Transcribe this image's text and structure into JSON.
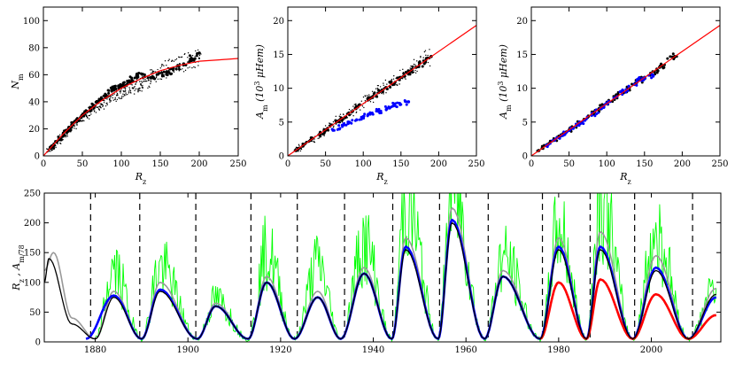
{
  "chart_data": [
    {
      "type": "scatter",
      "panel": "top-left",
      "xlabel": "R_z",
      "ylabel": "N_m",
      "xlim": [
        0,
        250
      ],
      "ylim": [
        0,
        110
      ],
      "xticks": [
        "0",
        "50",
        "100",
        "150",
        "200",
        "250"
      ],
      "yticks": [
        "0",
        "20",
        "40",
        "60",
        "80",
        "100"
      ],
      "grid": false,
      "series": [
        {
          "color": "#000000",
          "style": "small dots",
          "points": [
            [
              5,
              3
            ],
            [
              15,
              8
            ],
            [
              25,
              15
            ],
            [
              35,
              20
            ],
            [
              45,
              26
            ],
            [
              55,
              30
            ],
            [
              65,
              35
            ],
            [
              75,
              38
            ],
            [
              85,
              42
            ],
            [
              95,
              45
            ],
            [
              105,
              48
            ],
            [
              115,
              50
            ],
            [
              125,
              53
            ],
            [
              135,
              56
            ],
            [
              145,
              60
            ],
            [
              160,
              65
            ],
            [
              175,
              68
            ],
            [
              190,
              70
            ],
            [
              200,
              72
            ]
          ]
        },
        {
          "color": "#000000",
          "style": "large dots",
          "points": [
            [
              10,
              6
            ],
            [
              20,
              12
            ],
            [
              30,
              18
            ],
            [
              40,
              25
            ],
            [
              50,
              30
            ],
            [
              60,
              35
            ],
            [
              70,
              40
            ],
            [
              80,
              45
            ],
            [
              90,
              50
            ],
            [
              100,
              52
            ],
            [
              110,
              55
            ],
            [
              120,
              60
            ],
            [
              140,
              58
            ],
            [
              160,
              62
            ],
            [
              180,
              68
            ],
            [
              200,
              76
            ]
          ]
        },
        {
          "color": "#ff0000",
          "style": "fit curve",
          "points": [
            [
              0,
              0
            ],
            [
              25,
              16
            ],
            [
              50,
              30
            ],
            [
              75,
              41
            ],
            [
              100,
              50
            ],
            [
              125,
              57
            ],
            [
              150,
              63
            ],
            [
              175,
              67
            ],
            [
              200,
              70
            ],
            [
              225,
              71
            ],
            [
              250,
              72
            ]
          ]
        }
      ]
    },
    {
      "type": "scatter",
      "panel": "top-middle",
      "xlabel": "R_z",
      "ylabel": "A_m (10^3 μHem)",
      "xlim": [
        0,
        250
      ],
      "ylim": [
        0,
        22
      ],
      "xticks": [
        "0",
        "50",
        "100",
        "150",
        "200",
        "250"
      ],
      "yticks": [
        "0",
        "5",
        "10",
        "15",
        "20"
      ],
      "grid": false,
      "series": [
        {
          "color": "#000000",
          "style": "small dots",
          "points": [
            [
              10,
              0.8
            ],
            [
              30,
              2.3
            ],
            [
              50,
              3.8
            ],
            [
              70,
              5.4
            ],
            [
              90,
              7.0
            ],
            [
              110,
              8.6
            ],
            [
              130,
              10.1
            ],
            [
              150,
              11.6
            ],
            [
              170,
              13.1
            ],
            [
              190,
              14.7
            ]
          ]
        },
        {
          "color": "#000000",
          "style": "large dots",
          "points": [
            [
              10,
              0.8
            ],
            [
              30,
              2.3
            ],
            [
              50,
              3.8
            ],
            [
              70,
              5.4
            ],
            [
              90,
              7.0
            ],
            [
              110,
              8.6
            ],
            [
              130,
              10.1
            ],
            [
              150,
              11.6
            ],
            [
              170,
              13.1
            ],
            [
              190,
              14.7
            ]
          ]
        },
        {
          "color": "#0000ff",
          "style": "dots",
          "points": [
            [
              60,
              3.8
            ],
            [
              80,
              4.8
            ],
            [
              100,
              5.8
            ],
            [
              120,
              6.6
            ],
            [
              140,
              7.4
            ],
            [
              160,
              8.0
            ]
          ]
        },
        {
          "color": "#ff0000",
          "style": "fit line",
          "points": [
            [
              0,
              0
            ],
            [
              250,
              19.3
            ]
          ]
        }
      ]
    },
    {
      "type": "scatter",
      "panel": "top-right",
      "xlabel": "R_z",
      "ylabel": "A_m (10^3 μHem)",
      "xlim": [
        0,
        250
      ],
      "ylim": [
        0,
        22
      ],
      "xticks": [
        "0",
        "50",
        "100",
        "150",
        "200",
        "250"
      ],
      "yticks": [
        "0",
        "5",
        "10",
        "15",
        "20"
      ],
      "grid": false,
      "series": [
        {
          "color": "#000000",
          "style": "dots",
          "points": [
            [
              10,
              0.8
            ],
            [
              30,
              2.3
            ],
            [
              50,
              3.8
            ],
            [
              70,
              5.4
            ],
            [
              90,
              7.0
            ],
            [
              110,
              8.6
            ],
            [
              130,
              10.1
            ],
            [
              150,
              11.6
            ],
            [
              170,
              13.1
            ],
            [
              190,
              14.7
            ]
          ]
        },
        {
          "color": "#0000ff",
          "style": "dots",
          "points": [
            [
              20,
              1.5
            ],
            [
              40,
              3.0
            ],
            [
              60,
              4.5
            ],
            [
              80,
              6.0
            ],
            [
              100,
              7.8
            ],
            [
              120,
              9.5
            ],
            [
              140,
              11.0
            ],
            [
              160,
              12.0
            ]
          ]
        },
        {
          "color": "#ff0000",
          "style": "fit line",
          "points": [
            [
              0,
              0
            ],
            [
              250,
              19.3
            ]
          ]
        }
      ]
    },
    {
      "type": "line",
      "panel": "bottom",
      "xlabel": "",
      "ylabel": "R_z , A_m/78",
      "xlim": [
        1869,
        2015
      ],
      "ylim": [
        0,
        250
      ],
      "xticks": [
        "1880",
        "1900",
        "1920",
        "1940",
        "1960",
        "1980",
        "2000"
      ],
      "yticks": [
        "0",
        "50",
        "100",
        "150",
        "200",
        "250"
      ],
      "grid": false,
      "cycle_minima": [
        1879,
        1889.6,
        1901.7,
        1913.6,
        1923.6,
        1933.8,
        1944.2,
        1954.3,
        1964.8,
        1976.5,
        1986.8,
        1996.4,
        2008.9
      ],
      "series": [
        {
          "color": "#00ff00",
          "style": "monthly",
          "points": [
            [
              1880,
              5
            ],
            [
              1884,
              120
            ],
            [
              1890,
              5
            ],
            [
              1894,
              125
            ],
            [
              1902,
              5
            ],
            [
              1906,
              70
            ],
            [
              1913,
              5
            ],
            [
              1917,
              150
            ],
            [
              1923,
              5
            ],
            [
              1928,
              130
            ],
            [
              1933,
              5
            ],
            [
              1938,
              165
            ],
            [
              1944,
              5
            ],
            [
              1947,
              235
            ],
            [
              1954,
              5
            ],
            [
              1957,
              260
            ],
            [
              1964,
              5
            ],
            [
              1968,
              140
            ],
            [
              1976,
              5
            ],
            [
              1980,
              190
            ],
            [
              1986,
              5
            ],
            [
              1989,
              240
            ],
            [
              1996,
              5
            ],
            [
              2001,
              180
            ],
            [
              2008,
              5
            ],
            [
              2014,
              90
            ]
          ]
        },
        {
          "color": "#999999",
          "style": "monthly smoothed",
          "points": [
            [
              1869,
              120
            ],
            [
              1871,
              150
            ],
            [
              1875,
              40
            ],
            [
              1880,
              5
            ],
            [
              1884,
              85
            ],
            [
              1890,
              5
            ],
            [
              1894,
              100
            ],
            [
              1902,
              5
            ],
            [
              1906,
              65
            ],
            [
              1913,
              5
            ],
            [
              1917,
              110
            ],
            [
              1923,
              5
            ],
            [
              1928,
              85
            ],
            [
              1933,
              5
            ],
            [
              1938,
              125
            ],
            [
              1944,
              5
            ],
            [
              1947,
              175
            ],
            [
              1954,
              5
            ],
            [
              1957,
              225
            ],
            [
              1964,
              5
            ],
            [
              1968,
              120
            ],
            [
              1976,
              5
            ],
            [
              1980,
              175
            ],
            [
              1986,
              5
            ],
            [
              1989,
              185
            ],
            [
              1996,
              5
            ],
            [
              2001,
              145
            ],
            [
              2008,
              5
            ],
            [
              2014,
              90
            ]
          ]
        },
        {
          "color": "#0000ff",
          "style": "thick",
          "points": [
            [
              1878,
              5
            ],
            [
              1884,
              78
            ],
            [
              1890,
              5
            ],
            [
              1894,
              88
            ],
            [
              1902,
              5
            ],
            [
              1906,
              60
            ],
            [
              1913,
              5
            ],
            [
              1917,
              100
            ],
            [
              1923,
              5
            ],
            [
              1928,
              75
            ],
            [
              1933,
              5
            ],
            [
              1938,
              115
            ],
            [
              1944,
              5
            ],
            [
              1947,
              160
            ],
            [
              1954,
              5
            ],
            [
              1957,
              205
            ],
            [
              1964,
              5
            ],
            [
              1968,
              110
            ],
            [
              1976,
              5
            ],
            [
              1980,
              160
            ],
            [
              1986,
              5
            ],
            [
              1989,
              160
            ],
            [
              1996,
              5
            ],
            [
              2001,
              125
            ],
            [
              2008,
              5
            ],
            [
              2014,
              75
            ]
          ]
        },
        {
          "color": "#ff0000",
          "style": "thick",
          "points": [
            [
              1976,
              5
            ],
            [
              1980,
              100
            ],
            [
              1986,
              5
            ],
            [
              1989,
              105
            ],
            [
              1996,
              5
            ],
            [
              2001,
              80
            ],
            [
              2008,
              5
            ],
            [
              2014,
              45
            ]
          ]
        },
        {
          "color": "#000000",
          "style": "smoothed",
          "points": [
            [
              1869,
              100
            ],
            [
              1870,
              140
            ],
            [
              1875,
              30
            ],
            [
              1880,
              5
            ],
            [
              1884,
              75
            ],
            [
              1890,
              5
            ],
            [
              1894,
              85
            ],
            [
              1902,
              5
            ],
            [
              1906,
              60
            ],
            [
              1913,
              5
            ],
            [
              1917,
              100
            ],
            [
              1923,
              5
            ],
            [
              1928,
              75
            ],
            [
              1933,
              5
            ],
            [
              1938,
              115
            ],
            [
              1944,
              5
            ],
            [
              1947,
              155
            ],
            [
              1954,
              5
            ],
            [
              1957,
              200
            ],
            [
              1964,
              5
            ],
            [
              1968,
              110
            ],
            [
              1976,
              5
            ],
            [
              1980,
              155
            ],
            [
              1986,
              5
            ],
            [
              1989,
              155
            ],
            [
              1996,
              5
            ],
            [
              2001,
              120
            ],
            [
              2008,
              5
            ],
            [
              2014,
              80
            ]
          ]
        }
      ]
    }
  ]
}
